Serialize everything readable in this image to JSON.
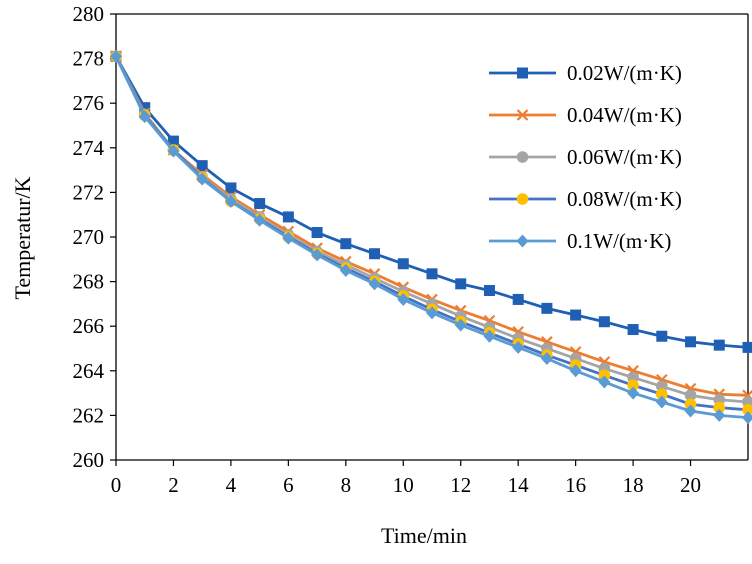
{
  "chart_data": {
    "type": "line",
    "title": "",
    "xlabel": "Time/min",
    "ylabel": "Temperatur/K",
    "xlim": [
      0,
      22
    ],
    "ylim": [
      260,
      280
    ],
    "xticks": [
      0,
      2,
      4,
      6,
      8,
      10,
      12,
      14,
      16,
      18,
      20
    ],
    "yticks": [
      260,
      262,
      264,
      266,
      268,
      270,
      272,
      274,
      276,
      278,
      280
    ],
    "grid": false,
    "legend_position": "top-right",
    "x": [
      0,
      1,
      2,
      3,
      4,
      5,
      6,
      7,
      8,
      9,
      10,
      11,
      12,
      13,
      14,
      15,
      16,
      17,
      18,
      19,
      20,
      21,
      22
    ],
    "series": [
      {
        "name": "0.02W/(m·K)",
        "color": "#1f5fb4",
        "marker": "square",
        "values": [
          278.1,
          275.8,
          274.3,
          273.2,
          272.2,
          271.5,
          270.9,
          270.2,
          269.7,
          269.25,
          268.8,
          268.35,
          267.9,
          267.6,
          267.2,
          266.8,
          266.5,
          266.2,
          265.85,
          265.55,
          265.3,
          265.15,
          265.05
        ]
      },
      {
        "name": "0.04W/(m·K)",
        "color": "#ed7d31",
        "marker": "x",
        "values": [
          278.1,
          275.55,
          273.9,
          272.8,
          271.8,
          271.0,
          270.25,
          269.5,
          268.9,
          268.35,
          267.75,
          267.2,
          266.7,
          266.25,
          265.75,
          265.3,
          264.85,
          264.4,
          264.0,
          263.6,
          263.2,
          262.95,
          262.9
        ]
      },
      {
        "name": "0.06W/(m·K)",
        "color": "#a5a5a5",
        "marker": "circle",
        "values": [
          278.1,
          275.5,
          273.9,
          272.7,
          271.7,
          270.9,
          270.1,
          269.35,
          268.75,
          268.15,
          267.55,
          267.0,
          266.45,
          265.95,
          265.45,
          265.0,
          264.55,
          264.1,
          263.7,
          263.3,
          262.9,
          262.7,
          262.6
        ]
      },
      {
        "name": "0.08W/(m·K)",
        "color": "#ffc000",
        "line_color": "#4472c4",
        "marker": "circle",
        "values": [
          278.1,
          275.45,
          273.9,
          272.65,
          271.6,
          270.8,
          270.0,
          269.25,
          268.6,
          268.0,
          267.35,
          266.75,
          266.2,
          265.7,
          265.2,
          264.7,
          264.25,
          263.8,
          263.35,
          262.95,
          262.5,
          262.35,
          262.25
        ]
      },
      {
        "name": "0.1W/(m·K)",
        "color": "#5b9bd5",
        "marker": "diamond",
        "values": [
          278.1,
          275.4,
          273.85,
          272.6,
          271.6,
          270.75,
          269.95,
          269.2,
          268.5,
          267.9,
          267.2,
          266.6,
          266.05,
          265.55,
          265.05,
          264.55,
          264.0,
          263.5,
          263.0,
          262.6,
          262.2,
          262.0,
          261.9
        ]
      }
    ]
  }
}
